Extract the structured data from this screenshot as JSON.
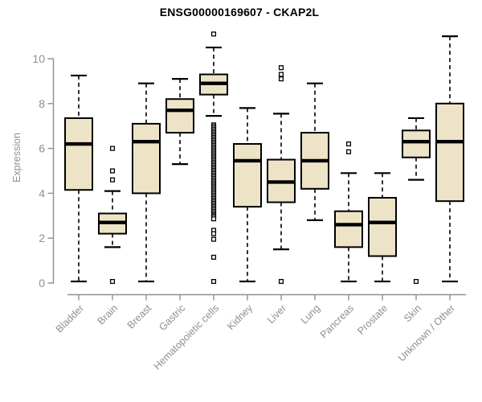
{
  "colors": {
    "background": "#ffffff",
    "box_fill": "#ede4c7",
    "box_stroke": "#000000",
    "median": "#000000",
    "whisker": "#000000",
    "outlier_stroke": "#000000",
    "outlier_fill": "#ffffff",
    "axis": "#909090",
    "tick_label": "#8f8f8f",
    "title": "#000000"
  },
  "chart_data": {
    "type": "box",
    "title": "ENSG00000169607 - CKAP2L",
    "xlabel": "",
    "ylabel": "Expression",
    "ylim": [
      0,
      11.2
    ],
    "yticks": [
      0,
      2,
      4,
      6,
      8,
      10
    ],
    "grid": false,
    "legend": "none",
    "categories": [
      "Bladder",
      "Brain",
      "Breast",
      "Gastric",
      "Hematopoietic cells",
      "Kidney",
      "Liver",
      "Lung",
      "Pancreas",
      "Prostate",
      "Skin",
      "Unknown / Other"
    ],
    "series": [
      {
        "label": "Bladder",
        "whisker_low": 0.07,
        "q1": 4.15,
        "median": 6.2,
        "q3": 7.35,
        "whisker_high": 9.25,
        "outliers": []
      },
      {
        "label": "Brain",
        "whisker_low": 1.6,
        "q1": 2.2,
        "median": 2.7,
        "q3": 3.1,
        "whisker_high": 4.1,
        "outliers": [
          6.0,
          5.0,
          4.6,
          0.07
        ]
      },
      {
        "label": "Breast",
        "whisker_low": 0.07,
        "q1": 4.0,
        "median": 6.3,
        "q3": 7.1,
        "whisker_high": 8.9,
        "outliers": []
      },
      {
        "label": "Gastric",
        "whisker_low": 5.3,
        "q1": 6.7,
        "median": 7.7,
        "q3": 8.2,
        "whisker_high": 9.1,
        "outliers": []
      },
      {
        "label": "Hematopoietic cells",
        "whisker_low": 7.45,
        "q1": 8.4,
        "median": 8.9,
        "q3": 9.3,
        "whisker_high": 10.5,
        "outliers": [
          11.1,
          7.05,
          6.98,
          6.91,
          6.84,
          6.77,
          6.7,
          6.63,
          6.56,
          6.49,
          6.42,
          6.35,
          6.28,
          6.21,
          6.14,
          6.07,
          6.0,
          5.93,
          5.86,
          5.79,
          5.72,
          5.65,
          5.58,
          5.51,
          5.44,
          5.37,
          5.3,
          5.23,
          5.16,
          5.09,
          5.02,
          4.95,
          4.88,
          4.81,
          4.74,
          4.67,
          4.6,
          4.53,
          4.46,
          4.39,
          4.32,
          4.25,
          4.18,
          4.11,
          4.04,
          3.97,
          3.9,
          3.83,
          3.76,
          3.69,
          3.62,
          3.55,
          3.48,
          3.41,
          3.34,
          3.27,
          3.2,
          3.13,
          3.06,
          3.0,
          2.94,
          2.86,
          2.35,
          2.2,
          1.95,
          1.15,
          0.07
        ]
      },
      {
        "label": "Kidney",
        "whisker_low": 0.07,
        "q1": 3.4,
        "median": 5.45,
        "q3": 6.2,
        "whisker_high": 7.8,
        "outliers": []
      },
      {
        "label": "Liver",
        "whisker_low": 1.5,
        "q1": 3.6,
        "median": 4.5,
        "q3": 5.5,
        "whisker_high": 7.55,
        "outliers": [
          9.6,
          9.3,
          9.1,
          0.07
        ]
      },
      {
        "label": "Lung",
        "whisker_low": 2.8,
        "q1": 4.2,
        "median": 5.45,
        "q3": 6.7,
        "whisker_high": 8.9,
        "outliers": []
      },
      {
        "label": "Pancreas",
        "whisker_low": 0.07,
        "q1": 1.6,
        "median": 2.6,
        "q3": 3.2,
        "whisker_high": 4.9,
        "outliers": [
          6.2,
          5.85
        ]
      },
      {
        "label": "Prostate",
        "whisker_low": 0.07,
        "q1": 1.2,
        "median": 2.7,
        "q3": 3.8,
        "whisker_high": 4.9,
        "outliers": []
      },
      {
        "label": "Skin",
        "whisker_low": 4.6,
        "q1": 5.6,
        "median": 6.3,
        "q3": 6.8,
        "whisker_high": 7.35,
        "outliers": [
          0.07
        ]
      },
      {
        "label": "Unknown / Other",
        "whisker_low": 0.07,
        "q1": 3.65,
        "median": 6.3,
        "q3": 8.0,
        "whisker_high": 11.0,
        "outliers": []
      }
    ]
  }
}
